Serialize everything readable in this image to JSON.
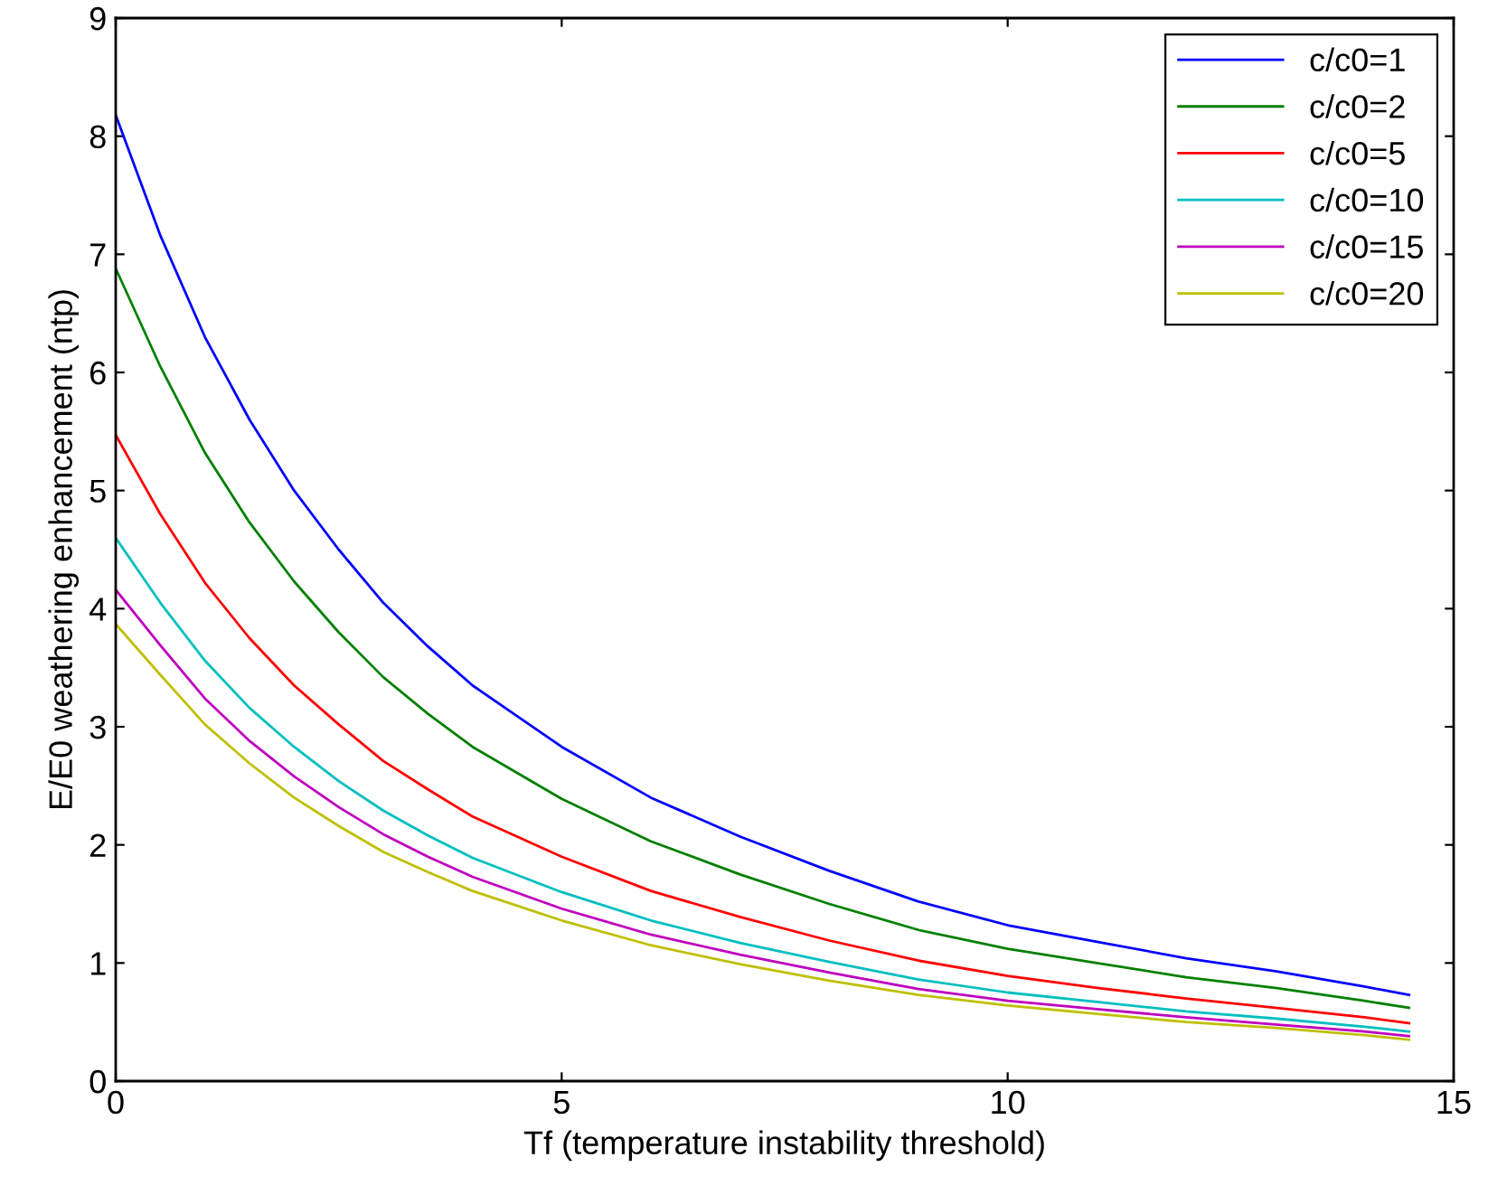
{
  "chart_data": {
    "type": "line",
    "xlabel": "Tf (temperature instability threshold)",
    "ylabel": "E/E0 weathering enhancement (ntp)",
    "x": [
      0,
      0.5,
      1,
      1.5,
      2,
      2.5,
      3,
      3.5,
      4,
      5,
      6,
      7,
      8,
      9,
      10,
      11,
      12,
      13,
      14,
      14.5
    ],
    "series": [
      {
        "name": "c/c0=1",
        "color": "#0000ff",
        "values": [
          8.18,
          7.16,
          6.3,
          5.6,
          5.0,
          4.5,
          4.05,
          3.68,
          3.35,
          2.83,
          2.4,
          2.07,
          1.78,
          1.52,
          1.32,
          1.18,
          1.04,
          0.93,
          0.8,
          0.73
        ]
      },
      {
        "name": "c/c0=2",
        "color": "#008000",
        "values": [
          6.88,
          6.05,
          5.32,
          4.73,
          4.23,
          3.8,
          3.42,
          3.11,
          2.83,
          2.39,
          2.03,
          1.75,
          1.5,
          1.28,
          1.12,
          1.0,
          0.88,
          0.79,
          0.68,
          0.62
        ]
      },
      {
        "name": "c/c0=5",
        "color": "#ff0000",
        "values": [
          5.47,
          4.8,
          4.22,
          3.75,
          3.35,
          3.02,
          2.71,
          2.47,
          2.24,
          1.9,
          1.61,
          1.39,
          1.19,
          1.02,
          0.89,
          0.79,
          0.7,
          0.62,
          0.54,
          0.49
        ]
      },
      {
        "name": "c/c0=10",
        "color": "#00bfbf",
        "values": [
          4.6,
          4.05,
          3.56,
          3.16,
          2.83,
          2.54,
          2.29,
          2.08,
          1.89,
          1.6,
          1.36,
          1.17,
          1.01,
          0.86,
          0.75,
          0.67,
          0.59,
          0.53,
          0.46,
          0.42
        ]
      },
      {
        "name": "c/c0=15",
        "color": "#bf00bf",
        "values": [
          4.16,
          3.69,
          3.24,
          2.88,
          2.58,
          2.32,
          2.09,
          1.9,
          1.73,
          1.46,
          1.24,
          1.07,
          0.92,
          0.78,
          0.68,
          0.61,
          0.54,
          0.48,
          0.42,
          0.38
        ]
      },
      {
        "name": "c/c0=20",
        "color": "#bfbf00",
        "values": [
          3.87,
          3.44,
          3.02,
          2.69,
          2.4,
          2.16,
          1.94,
          1.77,
          1.61,
          1.36,
          1.15,
          0.99,
          0.85,
          0.73,
          0.64,
          0.57,
          0.5,
          0.45,
          0.39,
          0.35
        ]
      }
    ],
    "xlim": [
      0,
      15
    ],
    "xticks": [
      0,
      5,
      10,
      15
    ],
    "ylim": [
      0,
      9
    ],
    "yticks": [
      0,
      1,
      2,
      3,
      4,
      5,
      6,
      7,
      8,
      9
    ],
    "grid": false,
    "legend": "top right",
    "marker": "none",
    "line_style": "solid"
  }
}
